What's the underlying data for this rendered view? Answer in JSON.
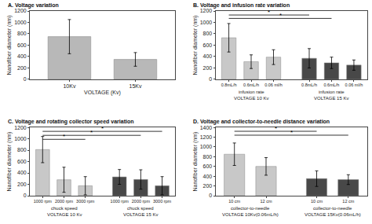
{
  "chart_data": [
    {
      "type": "bar",
      "title": "A. Voltage variation",
      "xlabel": "VOLTAGE (Kv)",
      "ylabel": "Nanofiber diameter (nm)",
      "series": [
        {
          "categories": [
            "10Kv",
            "15Kv"
          ],
          "values": [
            750,
            350
          ],
          "errors": [
            300,
            120
          ],
          "color": "#b8b8b8"
        }
      ],
      "ylim": [
        0,
        1200
      ],
      "yticks": [
        0,
        200,
        400,
        600,
        800,
        1000,
        1200
      ],
      "grid": false
    },
    {
      "type": "bar",
      "title": "B. Voltage and infusion rate variation",
      "ylabel": "Nanofiber diameter (nm)",
      "group_label": "infusion rate",
      "series": [
        {
          "name": "VOLTAGE 10 Kv",
          "categories": [
            "0.8mL/h",
            "0.6mL/h",
            "0.06 ml/h"
          ],
          "values": [
            730,
            310,
            390
          ],
          "errors": [
            250,
            120,
            130
          ],
          "color": "#c8c8c8"
        },
        {
          "name": "VOLTAGE 15 Kv",
          "categories": [
            "0.8mL/h",
            "0.6mL/h",
            "0.06 ml/h"
          ],
          "values": [
            370,
            290,
            250
          ],
          "errors": [
            170,
            100,
            90
          ],
          "color": "#484848"
        }
      ],
      "annotations": [
        {
          "text": "*",
          "y": 1130,
          "from": [
            0,
            0
          ],
          "to": [
            1,
            0
          ]
        },
        {
          "text": "*",
          "y": 1070,
          "from": [
            0,
            0
          ],
          "to": [
            1,
            1
          ]
        }
      ],
      "ylim": [
        0,
        1200
      ],
      "yticks": [
        0,
        200,
        400,
        600,
        800,
        1000,
        1200
      ],
      "grid": false
    },
    {
      "type": "bar",
      "title": "C. Voltage and rotating collector speed variation",
      "ylabel": "Nanofiber diameter (nm)",
      "group_label": "chuck speed",
      "series": [
        {
          "name": "VOLTAGE 10 Kv",
          "categories": [
            "1000 rpm",
            "2000 rpm",
            "3000 rpm"
          ],
          "values": [
            810,
            280,
            175
          ],
          "errors": [
            230,
            220,
            160
          ],
          "color": "#c8c8c8"
        },
        {
          "name": "VOLTAGE 15 Kv",
          "categories": [
            "1000 rpm",
            "2000 rpm",
            "3000 rpm"
          ],
          "values": [
            330,
            285,
            175
          ],
          "errors": [
            130,
            170,
            160
          ],
          "color": "#484848"
        }
      ],
      "annotations": [
        {
          "text": "*",
          "y": 1130,
          "from": [
            0,
            0
          ],
          "to": [
            1,
            2
          ]
        },
        {
          "text": "*",
          "y": 1060,
          "from": [
            0,
            0
          ],
          "to": [
            1,
            1
          ]
        },
        {
          "text": "*",
          "y": 990,
          "from": [
            0,
            0
          ],
          "to": [
            0,
            2
          ]
        }
      ],
      "ylim": [
        0,
        1200
      ],
      "yticks": [
        0,
        200,
        400,
        600,
        800,
        1000,
        1200
      ],
      "grid": false
    },
    {
      "type": "bar",
      "title": "D. Voltage and collector-to-needle distance variation",
      "ylabel": "Nanofiber diameter (nm)",
      "group_label": "collector-to-needle",
      "series": [
        {
          "name": "VOLTAGE 10Kv(0.06mL/h)",
          "categories": [
            "10 cm",
            "12 cm"
          ],
          "values": [
            850,
            600
          ],
          "errors": [
            230,
            180
          ],
          "color": "#c8c8c8"
        },
        {
          "name": "VOLTAGE 15Kv(0.06mL/h)",
          "categories": [
            "10 cm",
            "12 cm"
          ],
          "values": [
            350,
            330
          ],
          "errors": [
            160,
            100
          ],
          "color": "#484848"
        }
      ],
      "annotations": [
        {
          "text": "*",
          "y": 1320,
          "from": [
            0,
            0
          ],
          "to": [
            1,
            0
          ]
        },
        {
          "text": "*",
          "y": 1240,
          "from": [
            0,
            0
          ],
          "to": [
            1,
            1
          ]
        }
      ],
      "ylim": [
        0,
        1400
      ],
      "yticks": [
        0,
        200,
        400,
        600,
        800,
        1000,
        1200,
        1400
      ],
      "grid": false
    }
  ]
}
